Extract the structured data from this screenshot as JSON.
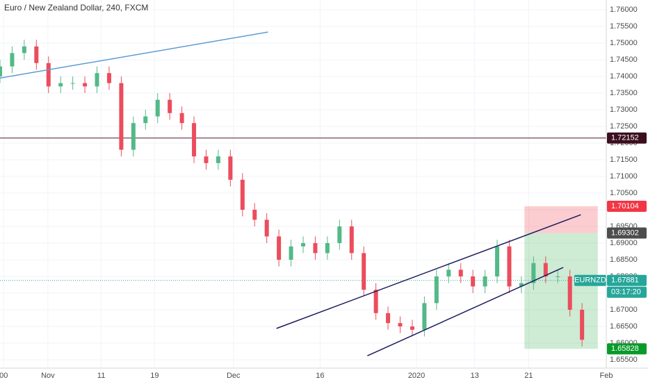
{
  "chart_data": {
    "type": "candlestick",
    "title": "Euro / New Zealand Dollar, 240, FXCM",
    "x": [
      0,
      2,
      4,
      6,
      8,
      10,
      12,
      14,
      16,
      18,
      20,
      22,
      24,
      26,
      28,
      30,
      32,
      34,
      36,
      38,
      40,
      42,
      44,
      46,
      48,
      50,
      52,
      54,
      56,
      58,
      60,
      62,
      64,
      66,
      68,
      70,
      72,
      74,
      76,
      78,
      80,
      82,
      84,
      86,
      88,
      90,
      92,
      94,
      96
    ],
    "open": [
      1.74,
      1.743,
      1.747,
      1.749,
      1.744,
      1.737,
      1.738,
      1.738,
      1.737,
      1.741,
      1.738,
      1.718,
      1.726,
      1.728,
      1.733,
      1.729,
      1.726,
      1.716,
      1.714,
      1.716,
      1.709,
      1.7,
      1.697,
      1.692,
      1.685,
      1.689,
      1.69,
      1.687,
      1.69,
      1.695,
      1.687,
      1.676,
      1.669,
      1.666,
      1.665,
      1.664,
      1.672,
      1.68,
      1.682,
      1.68,
      1.677,
      1.68,
      1.689,
      1.677,
      1.678,
      1.684,
      1.68,
      1.68,
      1.67
    ],
    "high": [
      1.745,
      1.749,
      1.751,
      1.751,
      1.746,
      1.74,
      1.74,
      1.74,
      1.743,
      1.743,
      1.74,
      1.728,
      1.73,
      1.735,
      1.735,
      1.731,
      1.728,
      1.718,
      1.718,
      1.718,
      1.711,
      1.702,
      1.699,
      1.694,
      1.691,
      1.692,
      1.692,
      1.692,
      1.697,
      1.697,
      1.689,
      1.678,
      1.671,
      1.668,
      1.667,
      1.674,
      1.682,
      1.684,
      1.684,
      1.682,
      1.682,
      1.691,
      1.691,
      1.68,
      1.686,
      1.686,
      1.682,
      1.682,
      1.672
    ],
    "low": [
      1.738,
      1.741,
      1.745,
      1.742,
      1.735,
      1.735,
      1.736,
      1.735,
      1.735,
      1.736,
      1.716,
      1.716,
      1.724,
      1.726,
      1.727,
      1.724,
      1.714,
      1.712,
      1.712,
      1.707,
      1.698,
      1.695,
      1.69,
      1.683,
      1.683,
      1.687,
      1.685,
      1.685,
      1.688,
      1.685,
      1.674,
      1.667,
      1.664,
      1.663,
      1.662,
      1.662,
      1.67,
      1.678,
      1.678,
      1.675,
      1.675,
      1.678,
      1.675,
      1.675,
      1.676,
      1.678,
      1.678,
      1.668,
      1.659
    ],
    "close": [
      1.743,
      1.747,
      1.749,
      1.744,
      1.737,
      1.738,
      1.738,
      1.737,
      1.741,
      1.738,
      1.718,
      1.726,
      1.728,
      1.733,
      1.729,
      1.726,
      1.716,
      1.714,
      1.716,
      1.709,
      1.7,
      1.697,
      1.692,
      1.685,
      1.689,
      1.69,
      1.687,
      1.69,
      1.695,
      1.687,
      1.676,
      1.669,
      1.666,
      1.665,
      1.664,
      1.672,
      1.68,
      1.682,
      1.68,
      1.677,
      1.68,
      1.689,
      1.677,
      1.678,
      1.684,
      1.68,
      1.68,
      1.67,
      1.661
    ],
    "up_color": "#53b987",
    "down_color": "#eb4d5c",
    "xlim": [
      0,
      100
    ],
    "xticks": [
      {
        "value": 0.6,
        "label": "00"
      },
      {
        "value": 7.9,
        "label": "Nov"
      },
      {
        "value": 16.7,
        "label": "11"
      },
      {
        "value": 25.5,
        "label": "19"
      },
      {
        "value": 38.5,
        "label": "Dec"
      },
      {
        "value": 52.8,
        "label": "16"
      },
      {
        "value": 68.7,
        "label": "2020"
      },
      {
        "value": 78.3,
        "label": "13"
      },
      {
        "value": 87.2,
        "label": "21"
      },
      {
        "value": 100,
        "label": "Feb"
      }
    ],
    "ylim": [
      1.6525,
      1.76292
    ],
    "yticks": [
      {
        "value": 1.76,
        "label": "1.76000"
      },
      {
        "value": 1.755,
        "label": "1.75500"
      },
      {
        "value": 1.75,
        "label": "1.75000"
      },
      {
        "value": 1.745,
        "label": "1.74500"
      },
      {
        "value": 1.74,
        "label": "1.74000"
      },
      {
        "value": 1.735,
        "label": "1.73500"
      },
      {
        "value": 1.73,
        "label": "1.73000"
      },
      {
        "value": 1.725,
        "label": "1.72500"
      },
      {
        "value": 1.72,
        "label": "1.72000"
      },
      {
        "value": 1.715,
        "label": "1.71500"
      },
      {
        "value": 1.71,
        "label": "1.71000"
      },
      {
        "value": 1.705,
        "label": "1.70500"
      },
      {
        "value": 1.7,
        "label": "1.70000"
      },
      {
        "value": 1.695,
        "label": "1.69500"
      },
      {
        "value": 1.69,
        "label": "1.69000"
      },
      {
        "value": 1.685,
        "label": "1.68500"
      },
      {
        "value": 1.68,
        "label": "1.68000"
      },
      {
        "value": 1.675,
        "label": "1.67500"
      },
      {
        "value": 1.67,
        "label": "1.67000"
      },
      {
        "value": 1.665,
        "label": "1.66500"
      },
      {
        "value": 1.66,
        "label": "1.66000"
      },
      {
        "value": 1.655,
        "label": "1.65500"
      }
    ],
    "grid": true,
    "levels": [
      {
        "value": 1.72152,
        "color": "#4b1c2b"
      },
      {
        "value": 1.67881,
        "color": "#26a69a"
      }
    ],
    "trend_lines": [
      {
        "x": [
          0,
          44.2
        ],
        "y": [
          1.7395,
          1.7533
        ],
        "color": "#5b9bd5"
      },
      {
        "x": [
          45.6,
          95.8
        ],
        "y": [
          1.6644,
          1.6985
        ],
        "color": "#1a1a5e"
      },
      {
        "x": [
          60.6,
          92.9
        ],
        "y": [
          1.6562,
          1.6827
        ],
        "color": "#1a1a5e"
      }
    ],
    "position": {
      "x": [
        86.5,
        98.6
      ],
      "stop": 1.70104,
      "entry": 1.69302,
      "target": 1.65828
    },
    "price_marks": [
      {
        "value": 1.72152,
        "color": "#3b0f1f"
      },
      {
        "value": 1.70104,
        "color": "#f23645"
      },
      {
        "value": 1.69302,
        "color": "#4d4d4d"
      },
      {
        "value": 1.67881,
        "color": "#26a69a"
      },
      {
        "value": 1.65828,
        "color": "#089b2a"
      }
    ],
    "symbol": "EURNZD",
    "timer": "03:17:20"
  }
}
